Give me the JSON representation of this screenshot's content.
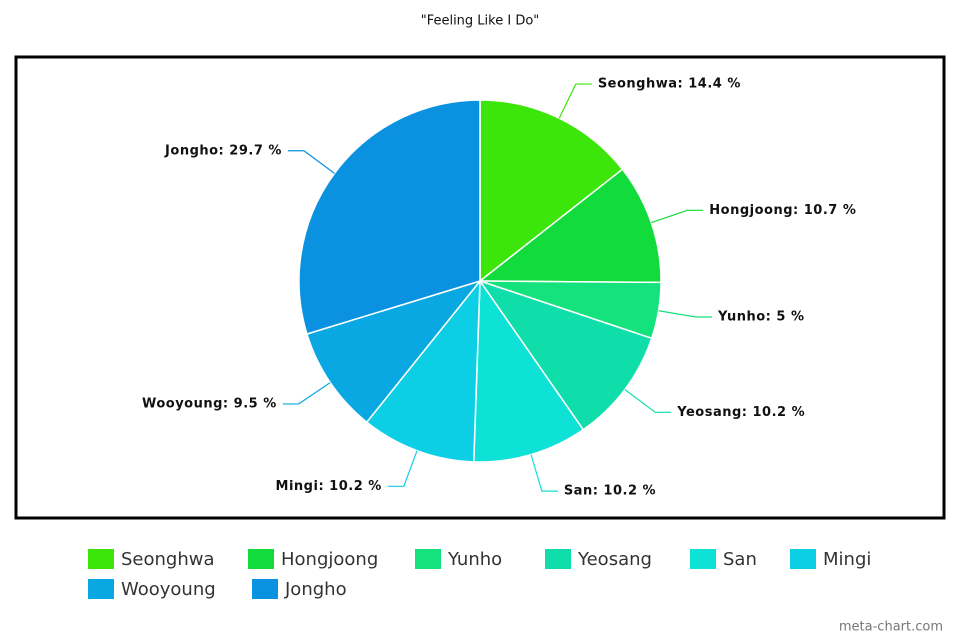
{
  "chart_data": {
    "type": "pie",
    "title": "\"Feeling Like I Do\"",
    "categories": [
      "Seonghwa",
      "Hongjoong",
      "Yunho",
      "Yeosang",
      "San",
      "Mingi",
      "Wooyoung",
      "Jongho"
    ],
    "values": [
      14.4,
      10.7,
      5,
      10.2,
      10.2,
      10.2,
      9.5,
      29.7
    ],
    "value_labels": [
      "Seonghwa: 14.4 %",
      "Hongjoong: 10.7 %",
      "Yunho: 5 %",
      "Yeosang: 10.2 %",
      "San: 10.2 %",
      "Mingi: 10.2 %",
      "Wooyoung: 9.5 %",
      "Jongho: 29.7 %"
    ],
    "colors": [
      "#3de60a",
      "#12dc3c",
      "#14e27c",
      "#10deaa",
      "#0ee2d6",
      "#0ccfe6",
      "#0aa8e2",
      "#0a92e0"
    ],
    "watermark": "meta-chart.com"
  }
}
